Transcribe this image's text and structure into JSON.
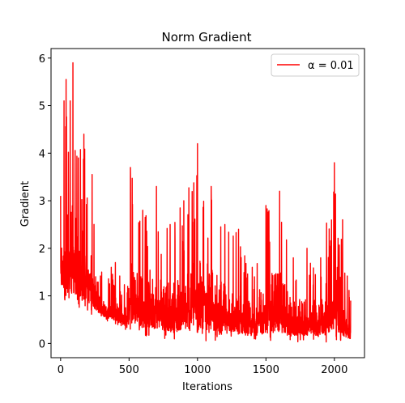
{
  "chart_data": {
    "type": "line",
    "title": "Norm Gradient",
    "xlabel": "Iterations",
    "ylabel": "Gradient",
    "xlim": [
      -70,
      2220
    ],
    "ylim": [
      -0.3,
      6.2
    ],
    "xticks": [
      0,
      500,
      1000,
      1500,
      2000
    ],
    "yticks": [
      0,
      1,
      2,
      3,
      4,
      5,
      6
    ],
    "grid": false,
    "legend_position": "top-right",
    "series": [
      {
        "name": "α = 0.01",
        "color": "#ff0000",
        "n_points": 2120,
        "envelope": [
          {
            "x": 0,
            "high": 3.1,
            "low": 1.0
          },
          {
            "x": 25,
            "high": 5.1,
            "low": 0.8
          },
          {
            "x": 40,
            "high": 5.55,
            "low": 0.3
          },
          {
            "x": 70,
            "high": 5.1,
            "low": 0.8
          },
          {
            "x": 90,
            "high": 5.9,
            "low": 0.75
          },
          {
            "x": 130,
            "high": 3.9,
            "low": 0.7
          },
          {
            "x": 170,
            "high": 4.4,
            "low": 0.65
          },
          {
            "x": 230,
            "high": 3.55,
            "low": 0.6
          },
          {
            "x": 300,
            "high": 1.5,
            "low": 0.5
          },
          {
            "x": 400,
            "high": 1.7,
            "low": 0.4
          },
          {
            "x": 490,
            "high": 1.2,
            "low": 0.25
          },
          {
            "x": 510,
            "high": 3.7,
            "low": 0.3
          },
          {
            "x": 600,
            "high": 2.8,
            "low": 0.15
          },
          {
            "x": 700,
            "high": 3.3,
            "low": 0.1
          },
          {
            "x": 800,
            "high": 2.5,
            "low": 0.1
          },
          {
            "x": 900,
            "high": 3.0,
            "low": 0.08
          },
          {
            "x": 1000,
            "high": 4.2,
            "low": 0.05
          },
          {
            "x": 1100,
            "high": 3.3,
            "low": 0.05
          },
          {
            "x": 1200,
            "high": 2.5,
            "low": 0.05
          },
          {
            "x": 1300,
            "high": 2.4,
            "low": 0.05
          },
          {
            "x": 1400,
            "high": 1.6,
            "low": 0.04
          },
          {
            "x": 1500,
            "high": 2.9,
            "low": 0.04
          },
          {
            "x": 1600,
            "high": 3.2,
            "low": 0.04
          },
          {
            "x": 1700,
            "high": 1.8,
            "low": 0.03
          },
          {
            "x": 1800,
            "high": 2.0,
            "low": 0.03
          },
          {
            "x": 1900,
            "high": 1.8,
            "low": 0.03
          },
          {
            "x": 2000,
            "high": 3.8,
            "low": 0.02
          },
          {
            "x": 2060,
            "high": 2.6,
            "low": 0.02
          },
          {
            "x": 2120,
            "high": 0.9,
            "low": 0.02
          }
        ]
      }
    ]
  }
}
